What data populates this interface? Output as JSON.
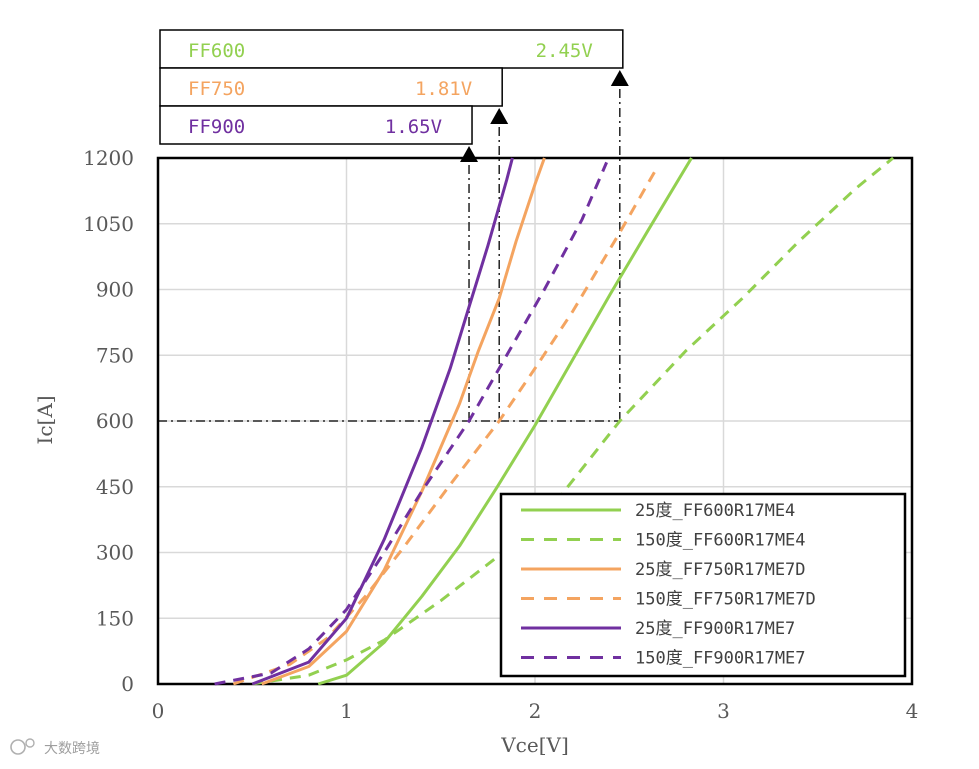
{
  "chart_data": {
    "type": "line",
    "xlabel": "Vce[V]",
    "ylabel": "Ic[A]",
    "xlim": [
      0,
      4
    ],
    "ylim": [
      0,
      1200
    ],
    "xticks": [
      "0",
      "1",
      "2",
      "3",
      "4"
    ],
    "yticks": [
      "0",
      "150",
      "300",
      "450",
      "600",
      "750",
      "900",
      "1050",
      "1200"
    ],
    "grid": true,
    "legend_position": "bottom-right",
    "series": [
      {
        "name": "25度_FF600R17ME4",
        "color": "#92d050",
        "dash": false,
        "x": [
          0.85,
          1.0,
          1.2,
          1.4,
          1.6,
          1.8,
          2.0,
          2.2,
          2.4,
          2.6,
          2.83
        ],
        "y": [
          0,
          20,
          95,
          200,
          315,
          450,
          590,
          740,
          890,
          1035,
          1200
        ]
      },
      {
        "name": "150度_FF600R17ME4",
        "color": "#92d050",
        "dash": true,
        "x": [
          0.5,
          0.8,
          1.0,
          1.2,
          1.5,
          1.8,
          2.1,
          2.45,
          2.8,
          3.1,
          3.4,
          3.7,
          3.9
        ],
        "y": [
          0,
          20,
          55,
          100,
          190,
          290,
          410,
          600,
          760,
          880,
          1010,
          1130,
          1200
        ]
      },
      {
        "name": "25度_FF750R17ME7D",
        "color": "#f4a460",
        "dash": false,
        "x": [
          0.55,
          0.8,
          1.0,
          1.2,
          1.4,
          1.6,
          1.7,
          1.81,
          1.9,
          2.0,
          2.05
        ],
        "y": [
          0,
          40,
          120,
          260,
          440,
          640,
          760,
          880,
          1010,
          1140,
          1200
        ]
      },
      {
        "name": "150度_FF750R17ME7D",
        "color": "#f4a460",
        "dash": true,
        "x": [
          0.4,
          0.7,
          0.9,
          1.1,
          1.3,
          1.55,
          1.81,
          2.0,
          2.2,
          2.45,
          2.65
        ],
        "y": [
          0,
          45,
          105,
          200,
          310,
          455,
          600,
          720,
          850,
          1030,
          1180
        ]
      },
      {
        "name": "25度_FF900R17ME7",
        "color": "#7030a0",
        "dash": false,
        "x": [
          0.5,
          0.8,
          1.0,
          1.2,
          1.4,
          1.55,
          1.65,
          1.75,
          1.85,
          1.88
        ],
        "y": [
          0,
          50,
          150,
          330,
          540,
          720,
          860,
          1000,
          1150,
          1200
        ]
      },
      {
        "name": "150度_FF900R17ME7",
        "color": "#7030a0",
        "dash": true,
        "x": [
          0.3,
          0.6,
          0.8,
          1.0,
          1.2,
          1.4,
          1.65,
          1.85,
          2.05,
          2.25,
          2.38
        ],
        "y": [
          0,
          25,
          80,
          170,
          300,
          440,
          600,
          750,
          900,
          1060,
          1190
        ]
      }
    ],
    "reference": {
      "current": 600,
      "color": "#000000"
    },
    "annotations": [
      {
        "label": "FF600",
        "value": "2.45V",
        "vce": 2.45,
        "color": "#92d050"
      },
      {
        "label": "FF750",
        "value": "1.81V",
        "vce": 1.81,
        "color": "#f4a460"
      },
      {
        "label": "FF900",
        "value": "1.65V",
        "vce": 1.65,
        "color": "#7030a0"
      }
    ]
  },
  "watermark": "大数跨境"
}
